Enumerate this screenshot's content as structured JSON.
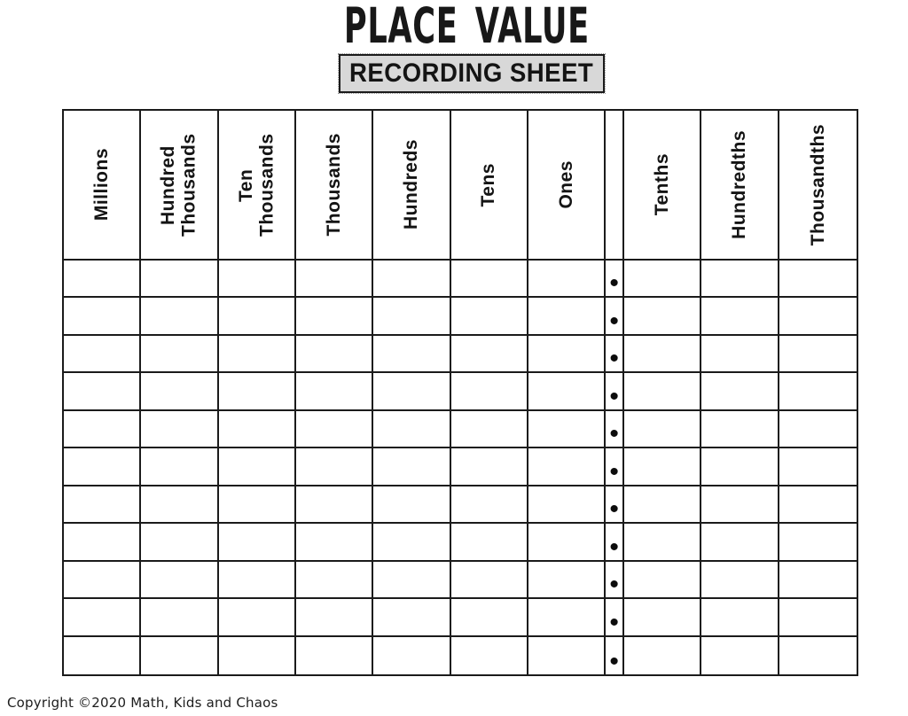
{
  "page": {
    "title": "PLACE VALUE",
    "subtitle": "RECORDING SHEET"
  },
  "table": {
    "columns": [
      {
        "label": "Millions",
        "type": "place"
      },
      {
        "label": "Hundred Thousands",
        "type": "place"
      },
      {
        "label": "Ten Thousands",
        "type": "place"
      },
      {
        "label": "Thousands",
        "type": "place"
      },
      {
        "label": "Hundreds",
        "type": "place"
      },
      {
        "label": "Tens",
        "type": "place"
      },
      {
        "label": "Ones",
        "type": "place"
      },
      {
        "label": "",
        "type": "decimal-separator"
      },
      {
        "label": "Tenths",
        "type": "place"
      },
      {
        "label": "Hundredths",
        "type": "place"
      },
      {
        "label": "Thousandths",
        "type": "place"
      }
    ],
    "row_count": 11,
    "decimal_symbol": "•"
  },
  "footer": {
    "copyright_text": "Copyright ©2020 Math, Kids and Chaos"
  },
  "colors": {
    "line": "#1b1b1b",
    "text": "#111111",
    "subtitle_box_bg": "#d8d8d8",
    "page_bg": "#ffffff"
  }
}
